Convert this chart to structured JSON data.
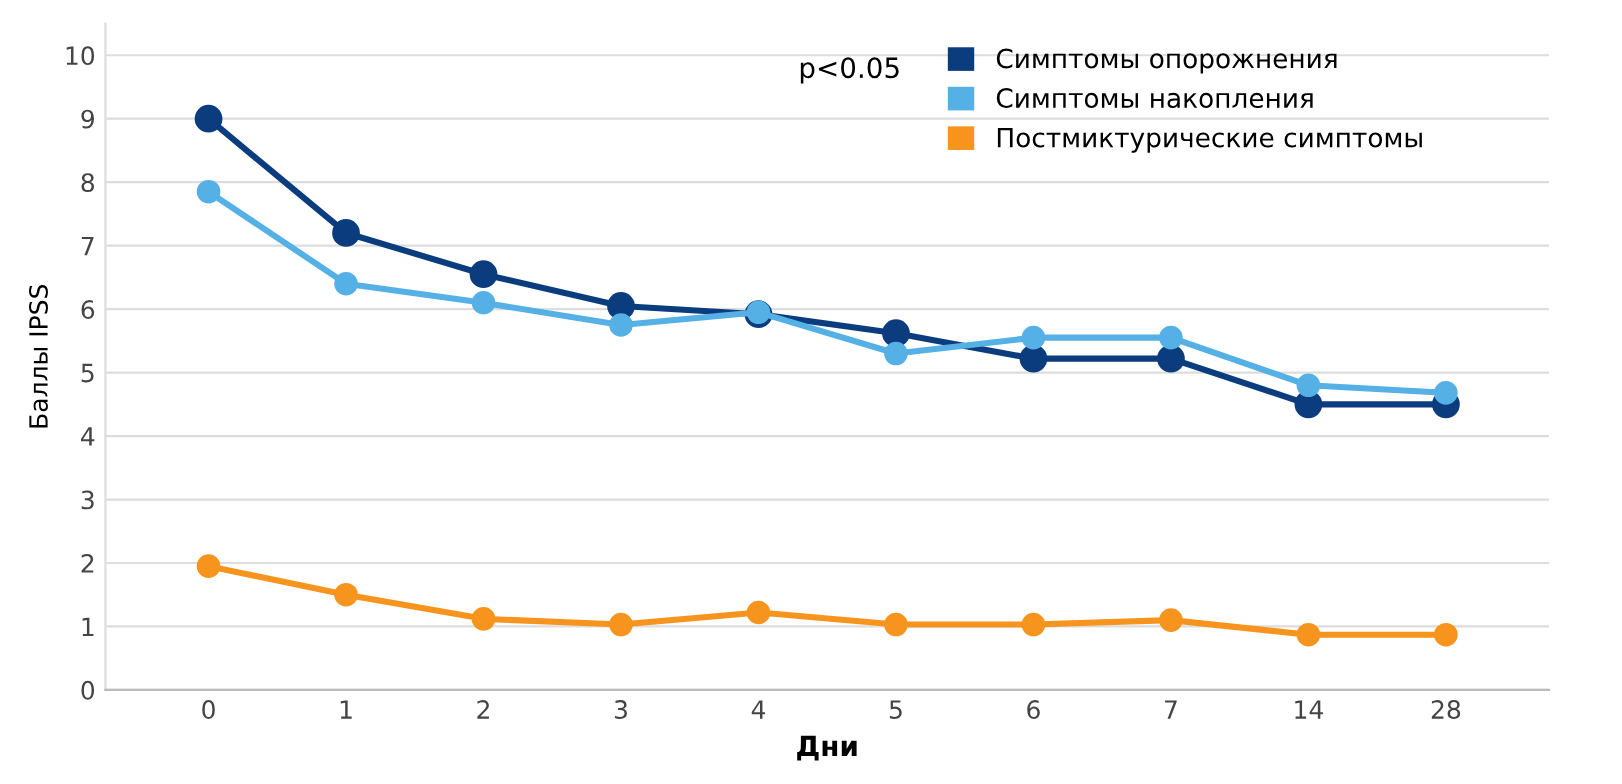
{
  "chart_data": {
    "type": "line",
    "xlabel": "Дни",
    "ylabel": "Баллы IPSS",
    "categories": [
      "0",
      "1",
      "2",
      "3",
      "4",
      "5",
      "6",
      "7",
      "14",
      "28"
    ],
    "series": [
      {
        "name": "Симптомы опорожнения",
        "color": "#0b3d7e",
        "values": [
          9.0,
          7.2,
          6.55,
          6.05,
          5.92,
          5.62,
          5.22,
          5.22,
          4.5,
          4.5
        ]
      },
      {
        "name": "Симптомы накопления",
        "color": "#55b0e6",
        "values": [
          7.85,
          6.4,
          6.1,
          5.75,
          5.95,
          5.3,
          5.55,
          5.55,
          4.8,
          4.68
        ]
      },
      {
        "name": "Постмиктурические симптомы",
        "color": "#f7941d",
        "values": [
          1.95,
          1.5,
          1.12,
          1.03,
          1.22,
          1.03,
          1.03,
          1.1,
          0.87,
          0.87
        ]
      }
    ],
    "ylim": [
      0,
      10.5
    ],
    "yticks": [
      0,
      1,
      2,
      3,
      4,
      5,
      6,
      7,
      8,
      9,
      10
    ],
    "grid": "y",
    "legend": "top right",
    "marker": "circle",
    "line_style": "solid",
    "annotations": [
      "p<0.05"
    ]
  }
}
